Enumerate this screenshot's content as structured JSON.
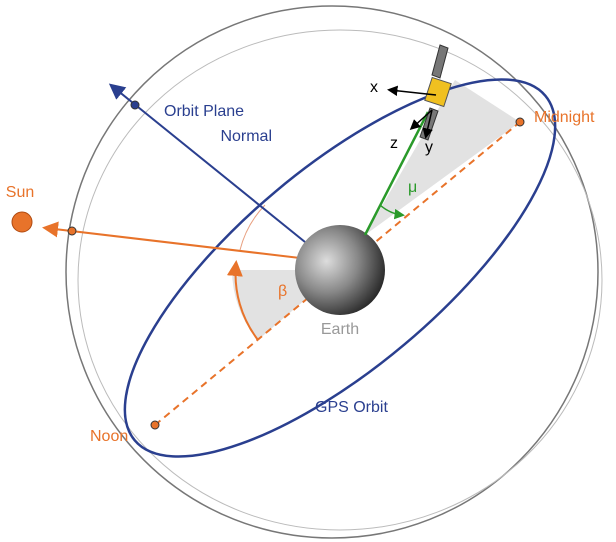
{
  "labels": {
    "sun": "Sun",
    "orbit_normal_line1": "Orbit Plane",
    "orbit_normal_line2": "Normal",
    "midnight": "Midnight",
    "noon": "Noon",
    "earth": "Earth",
    "gps_orbit": "GPS Orbit",
    "beta": "β",
    "mu": "μ",
    "axis_x": "x",
    "axis_y": "y",
    "axis_z": "z"
  }
}
